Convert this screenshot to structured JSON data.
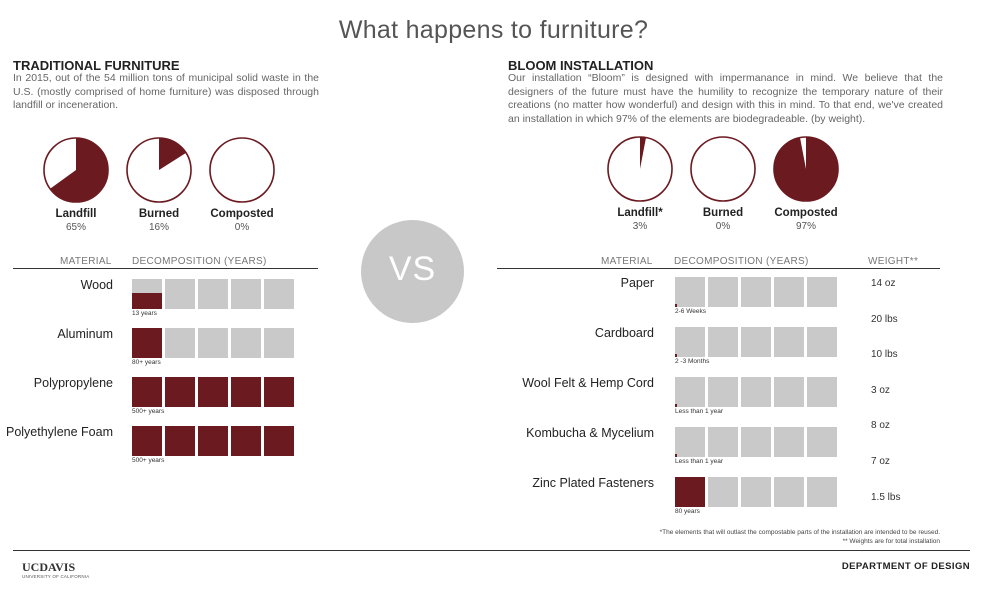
{
  "title": "What happens to furniture?",
  "vs": "VS",
  "left": {
    "heading": "TRADITIONAL FURNITURE",
    "body": "In 2015, out of the 54 million tons of municipal solid waste in the U.S. (mostly comprised of home furniture) was disposed through landfill or inceneration.",
    "col_material": "MATERIAL",
    "col_decomp": "DECOMPOSITION (YEARS)"
  },
  "right": {
    "heading": "BLOOM INSTALLATION",
    "body": "Our installation “Bloom” is designed with impermanance in mind. We believe that the designers of the future must have the humility to recognize the temporary nature of their creations (no matter how wonderful) and design with this in mind. To that end, we've created an installation in which 97% of the elements are biodegradeable. (by weight).",
    "col_material": "MATERIAL",
    "col_decomp": "DECOMPOSITION (YEARS)",
    "col_weight": "WEIGHT**"
  },
  "footnotes": {
    "star": "*The elements that will outlast the compostable parts of the installation are intended to be reused.",
    "double_star": "** Weights are for total installation"
  },
  "logo": {
    "main": "UCDAVIS",
    "sub": "UNIVERSITY OF CALIFORNIA"
  },
  "department": "DEPARTMENT OF DESIGN",
  "colors": {
    "accent": "#6b1a20",
    "cell": "#c9c9c9",
    "vs_circle": "#c8c8c8"
  },
  "chart_data": [
    {
      "type": "pie",
      "group": "traditional",
      "slices": [
        {
          "label": "Landfill",
          "pct_label": "65%",
          "value": 65
        },
        {
          "label": "Burned",
          "pct_label": "16%",
          "value": 16
        },
        {
          "label": "Composted",
          "pct_label": "0%",
          "value": 0
        }
      ]
    },
    {
      "type": "pie",
      "group": "bloom",
      "slices": [
        {
          "label": "Landfill*",
          "pct_label": "3%",
          "value": 3
        },
        {
          "label": "Burned",
          "pct_label": "0%",
          "value": 0
        },
        {
          "label": "Composted",
          "pct_label": "97%",
          "value": 97
        }
      ]
    },
    {
      "type": "table",
      "group": "traditional",
      "rows": [
        {
          "material": "Wood",
          "note": "13 years",
          "fill": 0.52
        },
        {
          "material": "Aluminum",
          "note": "80+ years",
          "fill": 1.0
        },
        {
          "material": "Polypropylene",
          "note": "500+ years",
          "fill": 5.0
        },
        {
          "material": "Polyethylene Foam",
          "note": "500+ years",
          "fill": 5.0
        }
      ]
    },
    {
      "type": "table",
      "group": "bloom",
      "rows": [
        {
          "material": "Paper",
          "note": "2-6 Weeks",
          "fill": 0.05
        },
        {
          "material": "Cardboard",
          "note": "2 -3 Months",
          "fill": 0.03
        },
        {
          "material": "Wool Felt & Hemp Cord",
          "note": "Less than 1 year",
          "fill": 0.06
        },
        {
          "material": "Kombucha & Mycelium",
          "note": "Less than 1 year",
          "fill": 0.06
        },
        {
          "material": "Zinc Plated Fasteners",
          "note": "80 years",
          "fill": 1.0
        }
      ],
      "weights": [
        "14 oz",
        "20 lbs",
        "10 lbs",
        "3 oz",
        "8 oz",
        "7 oz",
        "1.5 lbs"
      ]
    }
  ]
}
